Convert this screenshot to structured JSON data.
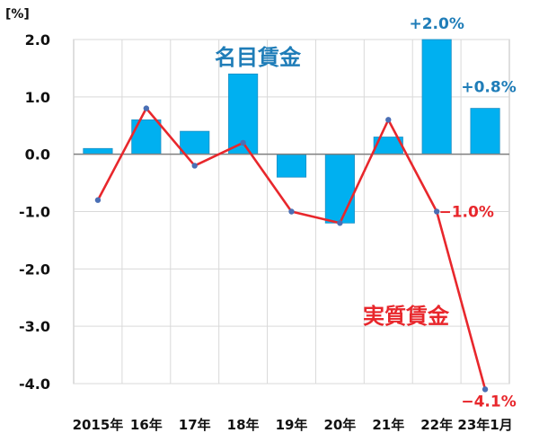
{
  "chart_data": {
    "type": "bar",
    "y_unit": "[%]",
    "categories": [
      "2015年",
      "16年",
      "17年",
      "18年",
      "19年",
      "20年",
      "21年",
      "22年",
      "23年1月"
    ],
    "ylim": [
      -4.0,
      2.0
    ],
    "yticks": [
      "2.0",
      "1.0",
      "0.0",
      "-1.0",
      "-2.0",
      "-3.0",
      "-4.0"
    ],
    "grid": true,
    "series": [
      {
        "name": "名目賃金",
        "type": "bar",
        "color": "#00B0F0",
        "values": [
          0.1,
          0.6,
          0.4,
          1.4,
          -0.4,
          -1.2,
          0.3,
          2.0,
          0.8
        ]
      },
      {
        "name": "実質賃金",
        "type": "line",
        "color": "#E8272C",
        "values": [
          -0.8,
          0.8,
          -0.2,
          0.2,
          -1.0,
          -1.2,
          0.6,
          -1.0,
          -4.1
        ]
      }
    ],
    "annotations": [
      {
        "text": "+2.0%",
        "series": 0,
        "index": 7,
        "color": "#1F7DB8"
      },
      {
        "text": "+0.8%",
        "series": 0,
        "index": 8,
        "color": "#1F7DB8"
      },
      {
        "text": "−1.0%",
        "series": 1,
        "index": 7,
        "color": "#E8272C"
      },
      {
        "text": "−4.1%",
        "series": 1,
        "index": 8,
        "color": "#E8272C"
      }
    ],
    "marker_color": "#4A6FB5"
  }
}
